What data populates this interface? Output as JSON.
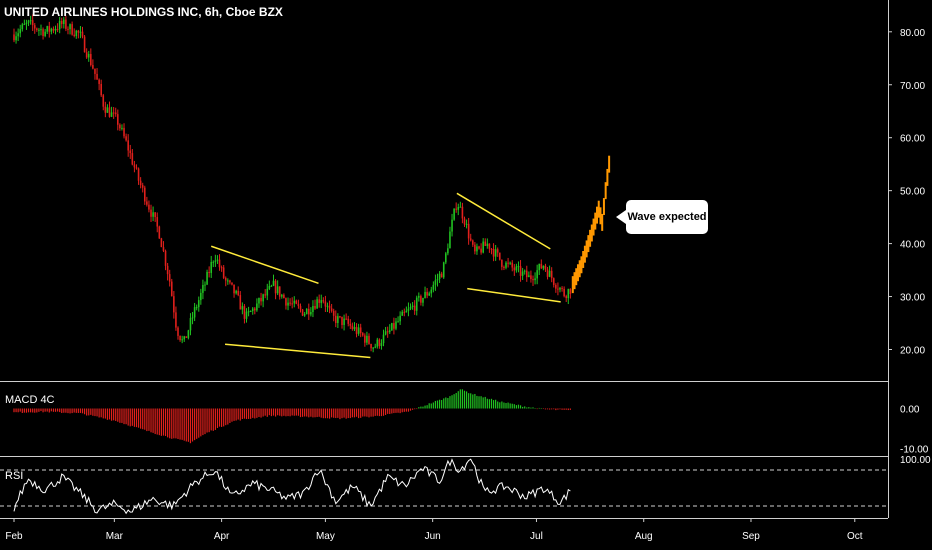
{
  "header": {
    "title": "UNITED AIRLINES HOLDINGS INC, 6h, Cboe BZX"
  },
  "panes": {
    "macd_label": "MACD 4C",
    "rsi_label": "RSI"
  },
  "annotation": {
    "text": "Wave expected"
  },
  "chart_data": [
    {
      "type": "candlestick",
      "title": "UNITED AIRLINES HOLDINGS INC, 6h, Cboe BZX",
      "x_ticks": [
        "Feb",
        "Mar",
        "Apr",
        "May",
        "Jun",
        "Jul",
        "Aug",
        "Sep",
        "Oct"
      ],
      "y_ticks": [
        20.0,
        30.0,
        40.0,
        50.0,
        60.0,
        70.0,
        80.0
      ],
      "y_tick_labels": [
        "20.00",
        "30.00",
        "40.00",
        "50.00",
        "60.00",
        "70.00",
        "80.00"
      ],
      "ylim": [
        17,
        87
      ],
      "grid": false,
      "colors": {
        "up": "#26a69a",
        "up_bar": "#21c321",
        "down": "#e0201c",
        "projection": "#ff9800",
        "trendline": "#ffeb3b"
      },
      "price_path": [
        {
          "x": "2020-02-01",
          "y": 79.5
        },
        {
          "x": "2020-02-05",
          "y": 81.5
        },
        {
          "x": "2020-02-10",
          "y": 80.0
        },
        {
          "x": "2020-02-15",
          "y": 81.5
        },
        {
          "x": "2020-02-20",
          "y": 79.5
        },
        {
          "x": "2020-02-24",
          "y": 73.0
        },
        {
          "x": "2020-02-27",
          "y": 66.0
        },
        {
          "x": "2020-03-02",
          "y": 63.0
        },
        {
          "x": "2020-03-05",
          "y": 58.0
        },
        {
          "x": "2020-03-08",
          "y": 52.0
        },
        {
          "x": "2020-03-11",
          "y": 47.0
        },
        {
          "x": "2020-03-14",
          "y": 42.0
        },
        {
          "x": "2020-03-17",
          "y": 33.0
        },
        {
          "x": "2020-03-19",
          "y": 24.0
        },
        {
          "x": "2020-03-21",
          "y": 21.0
        },
        {
          "x": "2020-03-24",
          "y": 27.0
        },
        {
          "x": "2020-03-27",
          "y": 32.0
        },
        {
          "x": "2020-03-30",
          "y": 38.0
        },
        {
          "x": "2020-04-02",
          "y": 33.0
        },
        {
          "x": "2020-04-05",
          "y": 30.5
        },
        {
          "x": "2020-04-08",
          "y": 26.0
        },
        {
          "x": "2020-04-12",
          "y": 29.0
        },
        {
          "x": "2020-04-16",
          "y": 32.0
        },
        {
          "x": "2020-04-20",
          "y": 29.0
        },
        {
          "x": "2020-04-25",
          "y": 27.0
        },
        {
          "x": "2020-04-30",
          "y": 30.0
        },
        {
          "x": "2020-05-03",
          "y": 26.0
        },
        {
          "x": "2020-05-07",
          "y": 25.0
        },
        {
          "x": "2020-05-11",
          "y": 23.0
        },
        {
          "x": "2020-05-15",
          "y": 20.5
        },
        {
          "x": "2020-05-19",
          "y": 23.0
        },
        {
          "x": "2020-05-23",
          "y": 26.0
        },
        {
          "x": "2020-05-27",
          "y": 28.5
        },
        {
          "x": "2020-05-31",
          "y": 31.0
        },
        {
          "x": "2020-06-04",
          "y": 35.0
        },
        {
          "x": "2020-06-06",
          "y": 42.0
        },
        {
          "x": "2020-06-08",
          "y": 48.0
        },
        {
          "x": "2020-06-10",
          "y": 45.0
        },
        {
          "x": "2020-06-13",
          "y": 38.0
        },
        {
          "x": "2020-06-17",
          "y": 40.0
        },
        {
          "x": "2020-06-21",
          "y": 36.5
        },
        {
          "x": "2020-06-25",
          "y": 35.0
        },
        {
          "x": "2020-06-29",
          "y": 33.5
        },
        {
          "x": "2020-07-03",
          "y": 36.0
        },
        {
          "x": "2020-07-06",
          "y": 33.0
        },
        {
          "x": "2020-07-09",
          "y": 30.5
        },
        {
          "x": "2020-07-11",
          "y": 31.5
        }
      ],
      "projection": [
        {
          "x": "2020-07-11",
          "y": 31.5
        },
        {
          "x": "2020-07-14",
          "y": 36.0
        },
        {
          "x": "2020-07-17",
          "y": 42.0
        },
        {
          "x": "2020-07-19",
          "y": 46.5
        },
        {
          "x": "2020-07-20",
          "y": 44.0
        },
        {
          "x": "2020-07-21",
          "y": 50.0
        },
        {
          "x": "2020-07-22",
          "y": 55.0
        }
      ],
      "trendlines": [
        {
          "from": {
            "x": "2020-03-29",
            "y": 39.5
          },
          "to": {
            "x": "2020-04-29",
            "y": 32.5
          }
        },
        {
          "from": {
            "x": "2020-04-02",
            "y": 21.0
          },
          "to": {
            "x": "2020-05-14",
            "y": 18.5
          }
        },
        {
          "from": {
            "x": "2020-06-08",
            "y": 49.5
          },
          "to": {
            "x": "2020-07-05",
            "y": 39.0
          }
        },
        {
          "from": {
            "x": "2020-06-11",
            "y": 31.5
          },
          "to": {
            "x": "2020-07-08",
            "y": 29.0
          }
        }
      ]
    },
    {
      "type": "bar",
      "name": "MACD 4C",
      "y_ticks": [
        0.0,
        -10.0
      ],
      "y_tick_labels": [
        "0.00",
        "-10.00"
      ],
      "ylim": [
        -10,
        6
      ],
      "histogram_path": [
        {
          "x": "2020-02-01",
          "y": -1.0
        },
        {
          "x": "2020-02-10",
          "y": -0.8
        },
        {
          "x": "2020-02-20",
          "y": -1.2
        },
        {
          "x": "2020-03-01",
          "y": -3.0
        },
        {
          "x": "2020-03-10",
          "y": -5.5
        },
        {
          "x": "2020-03-18",
          "y": -7.5
        },
        {
          "x": "2020-03-23",
          "y": -8.5
        },
        {
          "x": "2020-03-28",
          "y": -6.0
        },
        {
          "x": "2020-04-05",
          "y": -3.0
        },
        {
          "x": "2020-04-15",
          "y": -1.8
        },
        {
          "x": "2020-04-25",
          "y": -2.0
        },
        {
          "x": "2020-05-05",
          "y": -2.5
        },
        {
          "x": "2020-05-15",
          "y": -2.0
        },
        {
          "x": "2020-05-25",
          "y": -0.8
        },
        {
          "x": "2020-06-01",
          "y": 1.5
        },
        {
          "x": "2020-06-06",
          "y": 3.0
        },
        {
          "x": "2020-06-09",
          "y": 4.8
        },
        {
          "x": "2020-06-13",
          "y": 3.5
        },
        {
          "x": "2020-06-20",
          "y": 1.8
        },
        {
          "x": "2020-06-27",
          "y": 0.6
        },
        {
          "x": "2020-07-03",
          "y": -0.2
        },
        {
          "x": "2020-07-11",
          "y": -0.5
        }
      ]
    },
    {
      "type": "line",
      "name": "RSI",
      "y_tick_labels": [
        "100.00"
      ],
      "band": [
        30,
        70
      ],
      "ylim": [
        20,
        85
      ],
      "path": [
        {
          "x": "2020-02-01",
          "y": 28
        },
        {
          "x": "2020-02-05",
          "y": 60
        },
        {
          "x": "2020-02-10",
          "y": 48
        },
        {
          "x": "2020-02-15",
          "y": 62
        },
        {
          "x": "2020-02-20",
          "y": 45
        },
        {
          "x": "2020-02-25",
          "y": 25
        },
        {
          "x": "2020-03-01",
          "y": 32
        },
        {
          "x": "2020-03-06",
          "y": 24
        },
        {
          "x": "2020-03-12",
          "y": 38
        },
        {
          "x": "2020-03-18",
          "y": 30
        },
        {
          "x": "2020-03-24",
          "y": 55
        },
        {
          "x": "2020-03-30",
          "y": 70
        },
        {
          "x": "2020-04-04",
          "y": 40
        },
        {
          "x": "2020-04-10",
          "y": 55
        },
        {
          "x": "2020-04-15",
          "y": 48
        },
        {
          "x": "2020-04-20",
          "y": 38
        },
        {
          "x": "2020-04-25",
          "y": 45
        },
        {
          "x": "2020-04-29",
          "y": 72
        },
        {
          "x": "2020-05-04",
          "y": 35
        },
        {
          "x": "2020-05-09",
          "y": 52
        },
        {
          "x": "2020-05-14",
          "y": 30
        },
        {
          "x": "2020-05-19",
          "y": 62
        },
        {
          "x": "2020-05-24",
          "y": 52
        },
        {
          "x": "2020-05-29",
          "y": 72
        },
        {
          "x": "2020-06-03",
          "y": 58
        },
        {
          "x": "2020-06-06",
          "y": 80
        },
        {
          "x": "2020-06-09",
          "y": 70
        },
        {
          "x": "2020-06-12",
          "y": 84
        },
        {
          "x": "2020-06-16",
          "y": 45
        },
        {
          "x": "2020-06-22",
          "y": 52
        },
        {
          "x": "2020-06-28",
          "y": 40
        },
        {
          "x": "2020-07-03",
          "y": 50
        },
        {
          "x": "2020-07-08",
          "y": 34
        },
        {
          "x": "2020-07-11",
          "y": 48
        }
      ]
    }
  ]
}
